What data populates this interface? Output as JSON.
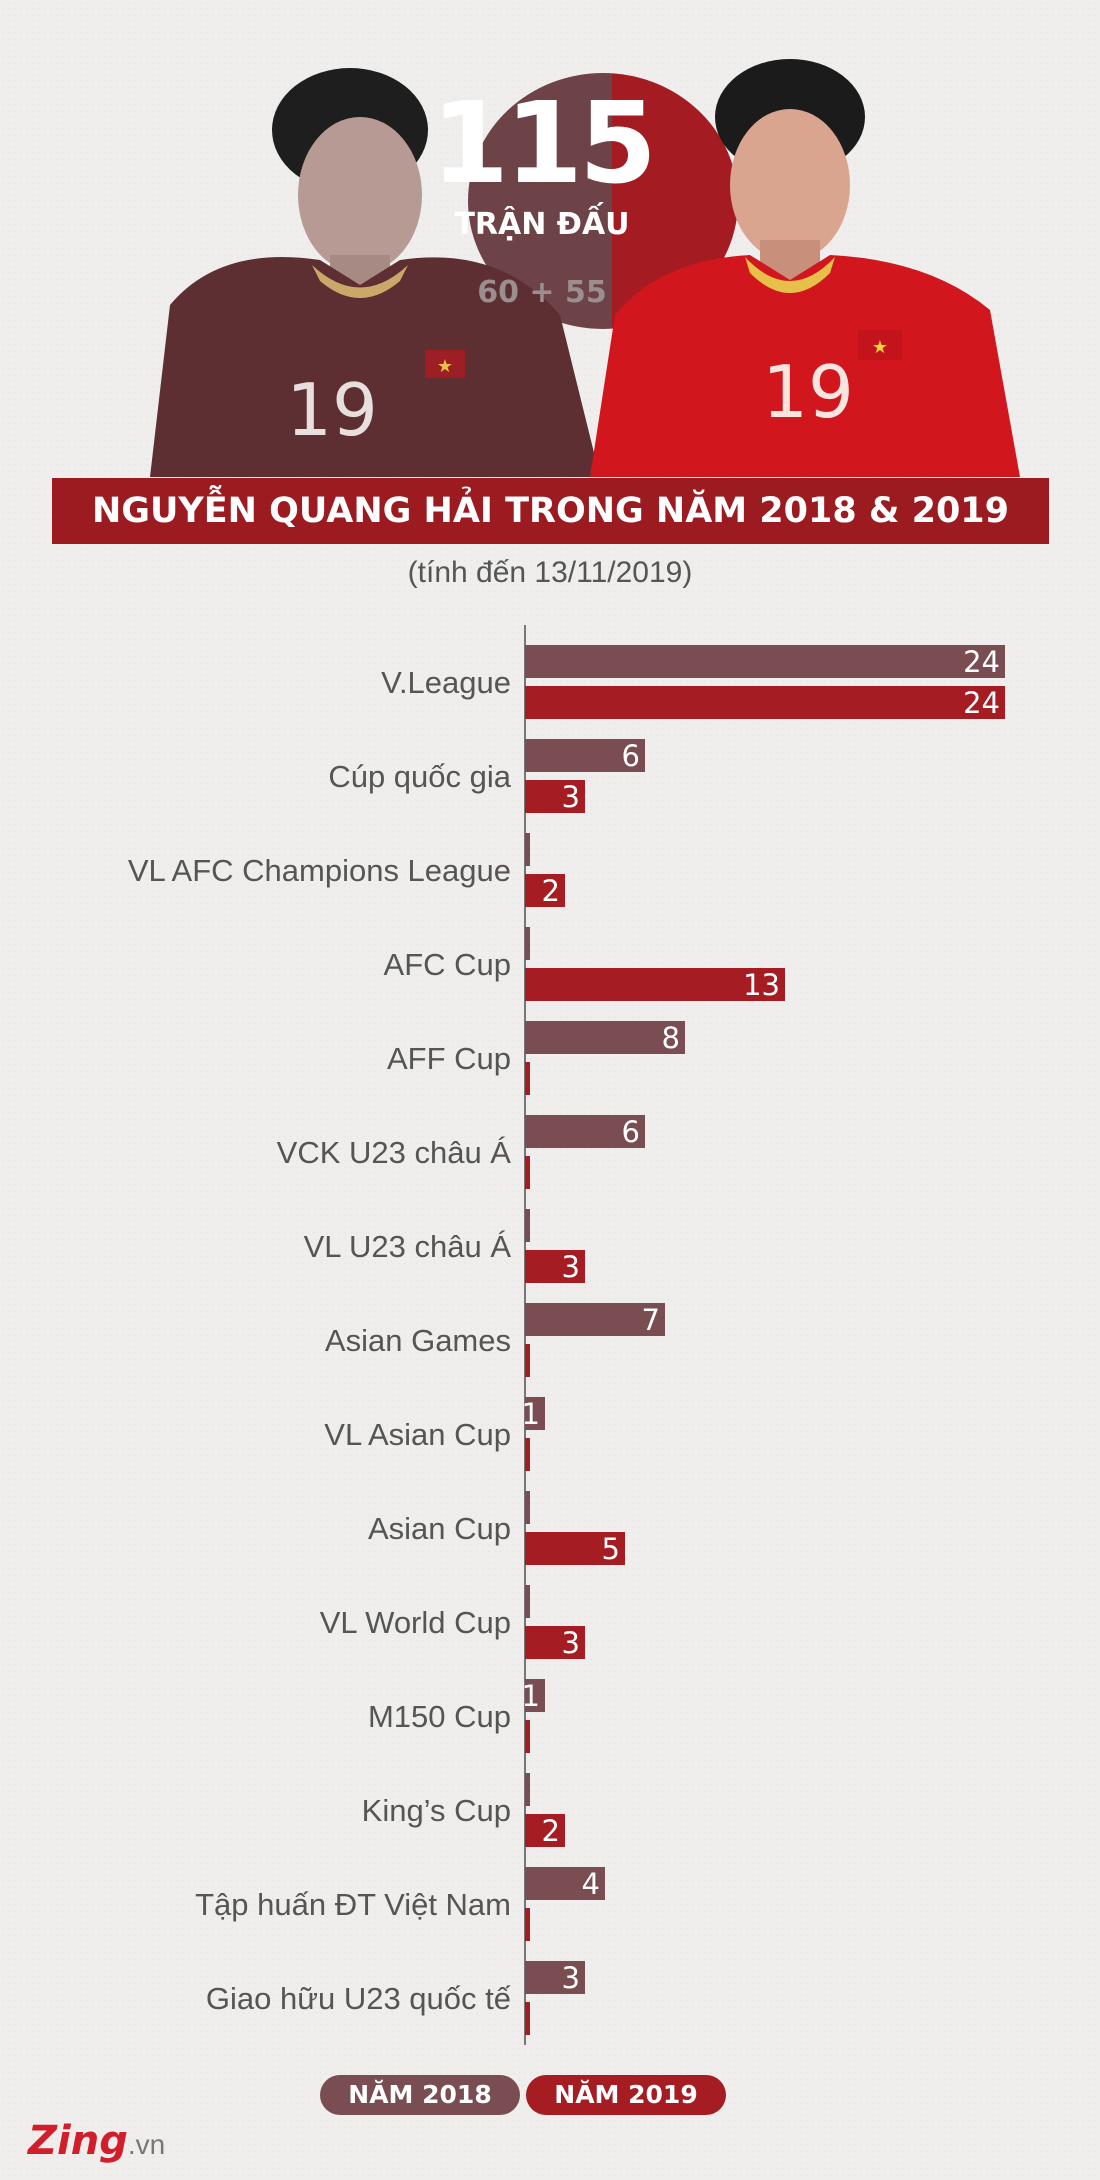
{
  "header": {
    "total_matches": "115",
    "matches_label": "TRẬN ĐẤU",
    "split": "60 + 55",
    "title": "NGUYỄN QUANG HẢI TRONG NĂM 2018 & 2019",
    "subtitle": "(tính đến 13/11/2019)"
  },
  "legend": {
    "y2018": "NĂM 2018",
    "y2019": "NĂM 2019"
  },
  "logo": {
    "main": "Zing",
    "sub": ".vn"
  },
  "colors": {
    "y2018": "#7a4d52",
    "y2019": "#a51c22",
    "title_bg": "#9b1b21"
  },
  "chart_data": {
    "type": "bar",
    "orientation": "horizontal",
    "categories": [
      "V.League",
      "Cúp quốc gia",
      "VL AFC Champions League",
      "AFC Cup",
      "AFF Cup",
      "VCK U23 châu Á",
      "VL U23 châu Á",
      "Asian Games",
      "VL Asian Cup",
      "Asian Cup",
      "VL World Cup",
      "M150 Cup",
      "King’s Cup",
      "Tập huấn ĐT Việt Nam",
      "Giao hữu U23 quốc tế"
    ],
    "series": [
      {
        "name": "NĂM 2018",
        "values": [
          24,
          6,
          0,
          0,
          8,
          6,
          0,
          7,
          1,
          0,
          0,
          1,
          0,
          4,
          3
        ]
      },
      {
        "name": "NĂM 2019",
        "values": [
          24,
          3,
          2,
          13,
          0,
          0,
          3,
          0,
          0,
          5,
          3,
          0,
          2,
          0,
          0
        ]
      }
    ],
    "xlim": [
      0,
      24
    ],
    "legend_position": "bottom"
  }
}
